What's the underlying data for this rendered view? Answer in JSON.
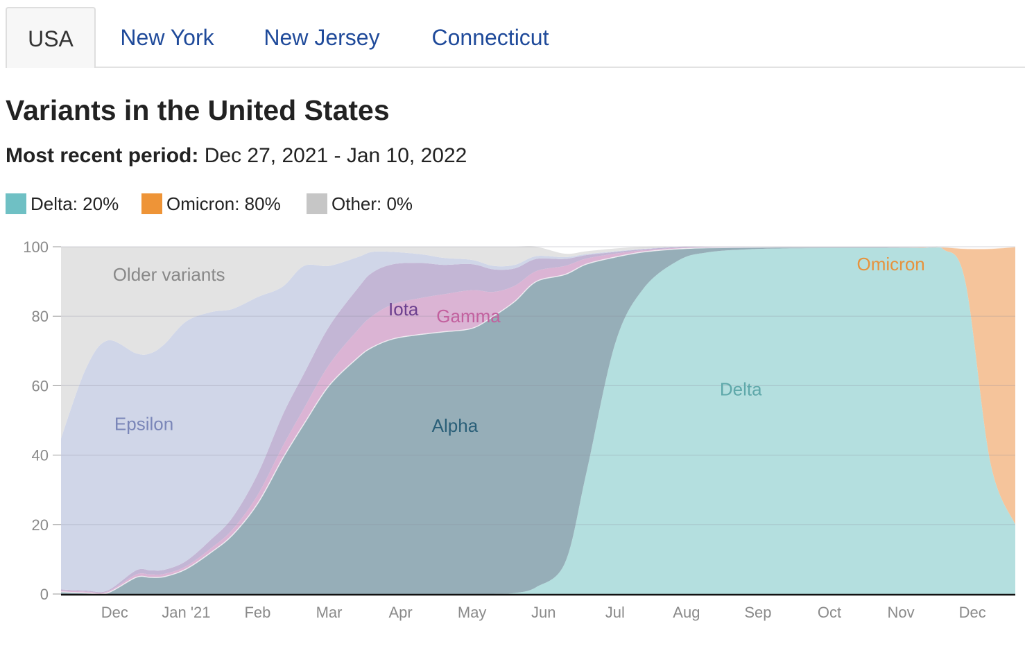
{
  "tabs": [
    {
      "label": "USA",
      "active": true
    },
    {
      "label": "New York",
      "active": false
    },
    {
      "label": "New Jersey",
      "active": false
    },
    {
      "label": "Connecticut",
      "active": false
    }
  ],
  "title": "Variants in the United States",
  "period": {
    "label": "Most recent period:",
    "value": "Dec 27, 2021 - Jan 10, 2022"
  },
  "legend": [
    {
      "label": "Delta: 20%",
      "color": "#6fc0c4"
    },
    {
      "label": "Omicron: 80%",
      "color": "#ee9437"
    },
    {
      "label": "Other: 0%",
      "color": "#c6c6c6"
    }
  ],
  "chart_data": {
    "type": "area",
    "stacked": true,
    "ylim": [
      0,
      100
    ],
    "yticks": [
      0,
      20,
      40,
      60,
      80,
      100
    ],
    "grid": true,
    "xlabels": [
      "Dec",
      "Jan '21",
      "Feb",
      "Mar",
      "Apr",
      "May",
      "Jun",
      "Jul",
      "Aug",
      "Sep",
      "Oct",
      "Nov",
      "Dec"
    ],
    "xlabel_positions": [
      0.5,
      1.5,
      2.5,
      3.5,
      4.5,
      5.5,
      6.5,
      7.5,
      8.5,
      9.5,
      10.5,
      11.5,
      12.5
    ],
    "x": [
      -0.25,
      0.1,
      0.4,
      0.8,
      1.0,
      1.2,
      1.5,
      1.85,
      2.15,
      2.5,
      2.85,
      3.15,
      3.5,
      3.9,
      4.1,
      4.4,
      4.8,
      5.1,
      5.5,
      5.8,
      6.1,
      6.4,
      6.8,
      7.1,
      7.5,
      7.9,
      8.4,
      8.8,
      9.3,
      9.8,
      10.5,
      11.2,
      11.8,
      12.1,
      12.4,
      12.75,
      13.1
    ],
    "series": [
      {
        "name": "Delta",
        "color": "#b4dfdf",
        "label_color": "#5fa8aa",
        "values": [
          0,
          0,
          0,
          0,
          0,
          0,
          0,
          0,
          0,
          0,
          0,
          0,
          0,
          0,
          0,
          0,
          0,
          0,
          0,
          0,
          0.3,
          2,
          9,
          35,
          72,
          88,
          96.2,
          98.4,
          99.2,
          99.5,
          99.6,
          99.6,
          99.6,
          99.2,
          90,
          38,
          20
        ]
      },
      {
        "name": "Omicron",
        "color": "#f5c49b",
        "label_color": "#e7923c",
        "values": [
          0,
          0,
          0,
          0,
          0,
          0,
          0,
          0,
          0,
          0,
          0,
          0,
          0,
          0,
          0,
          0,
          0,
          0,
          0,
          0,
          0,
          0,
          0,
          0,
          0,
          0,
          0,
          0,
          0,
          0,
          0,
          0,
          0.1,
          0.6,
          9.5,
          61.5,
          80
        ]
      },
      {
        "name": "Alpha",
        "color": "#96aeb8",
        "label_color": "#2a5f78",
        "values": [
          0.6,
          0.3,
          0.3,
          4.8,
          4.8,
          5,
          7.2,
          12,
          17,
          26,
          39,
          49,
          60,
          68,
          71,
          73.5,
          74.8,
          75.5,
          76.5,
          80,
          84,
          88,
          83,
          60,
          25,
          10.5,
          3.2,
          1.3,
          0.6,
          0.4,
          0.3,
          0.3,
          0.2,
          0.1,
          0,
          0,
          0
        ]
      },
      {
        "name": "Gamma",
        "color": "#dbb4d4",
        "label_color": "#c2609e",
        "values": [
          0.4,
          0.4,
          0.4,
          0.8,
          0.8,
          0.8,
          0.8,
          1.2,
          1.6,
          2.5,
          3.5,
          4.5,
          6,
          8,
          9,
          10,
          10.5,
          10.8,
          11,
          7,
          4.5,
          3,
          2.5,
          1.6,
          1,
          0.5,
          0.3,
          0.2,
          0.1,
          0.1,
          0,
          0,
          0,
          0,
          0,
          0,
          0
        ]
      },
      {
        "name": "Iota",
        "color": "#c3b6d5",
        "label_color": "#6b3f8e",
        "values": [
          0.3,
          0.3,
          0.3,
          1.2,
          1.2,
          1.2,
          1.5,
          2.5,
          3.5,
          6,
          9,
          10,
          11,
          12,
          12.5,
          11.5,
          10,
          8.5,
          7.5,
          6.5,
          5,
          3.5,
          2,
          1,
          0.5,
          0.3,
          0.2,
          0.1,
          0.1,
          0,
          0,
          0,
          0,
          0,
          0,
          0,
          0
        ]
      },
      {
        "name": "Epsilon",
        "color": "#d0d6e8",
        "label_color": "#7a86b8",
        "values": [
          43.5,
          64,
          72,
          62.5,
          62.5,
          65,
          69,
          65.5,
          60,
          51,
          37,
          31,
          17.5,
          9,
          6,
          3.5,
          2.5,
          2,
          1.2,
          1,
          1,
          0.8,
          0.5,
          0.3,
          0.2,
          0.1,
          0.1,
          0.05,
          0,
          0,
          0,
          0,
          0,
          0,
          0,
          0,
          0
        ]
      },
      {
        "name": "Older variants",
        "color": "#e3e3e3",
        "label_color": "#888888",
        "values": [
          55.2,
          35,
          27,
          30.7,
          30.7,
          28,
          21.5,
          18.8,
          17.9,
          14.5,
          11.5,
          5.5,
          5.5,
          3,
          1.5,
          1.5,
          2.2,
          3.2,
          3.8,
          5.5,
          5.2,
          2.7,
          1,
          0.8,
          0.8,
          0.9,
          0.2,
          0,
          0,
          0,
          0,
          0,
          0,
          0,
          0,
          0,
          0
        ]
      }
    ],
    "annotations": [
      {
        "text": "Older variants",
        "x": 1.26,
        "y": 92,
        "color": "#888888"
      },
      {
        "text": "Epsilon",
        "x": 0.91,
        "y": 49,
        "color": "#7a86b8"
      },
      {
        "text": "Iota",
        "x": 4.54,
        "y": 82,
        "color": "#6b3f8e"
      },
      {
        "text": "Gamma",
        "x": 5.45,
        "y": 80,
        "color": "#c2609e"
      },
      {
        "text": "Alpha",
        "x": 5.26,
        "y": 48.5,
        "color": "#2a5f78"
      },
      {
        "text": "Delta",
        "x": 9.26,
        "y": 59,
        "color": "#5fa8aa"
      },
      {
        "text": "Omicron",
        "x": 11.36,
        "y": 95,
        "color": "#e7923c"
      }
    ]
  }
}
